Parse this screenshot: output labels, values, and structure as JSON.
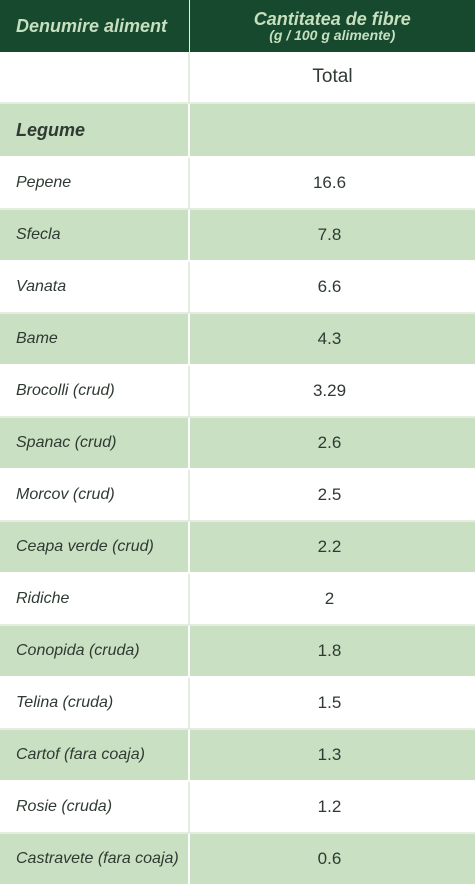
{
  "header": {
    "col1": "Denumire aliment",
    "col2_main": "Cantitatea de fibre",
    "col2_sub": "(g / 100 g alimente)"
  },
  "subheader": {
    "col1": "",
    "col2": "Total"
  },
  "section": {
    "label": "Legume",
    "value": ""
  },
  "rows": [
    {
      "name": "Pepene",
      "value": "16.6"
    },
    {
      "name": "Sfecla",
      "value": "7.8"
    },
    {
      "name": "Vanata",
      "value": "6.6"
    },
    {
      "name": "Bame",
      "value": "4.3"
    },
    {
      "name": "Brocolli (crud)",
      "value": "3.29"
    },
    {
      "name": "Spanac (crud)",
      "value": "2.6"
    },
    {
      "name": "Morcov (crud)",
      "value": "2.5"
    },
    {
      "name": "Ceapa verde (crud)",
      "value": "2.2"
    },
    {
      "name": "Ridiche",
      "value": "2"
    },
    {
      "name": "Conopida (cruda)",
      "value": "1.8"
    },
    {
      "name": "Telina (cruda)",
      "value": "1.5"
    },
    {
      "name": "Cartof (fara coaja)",
      "value": "1.3"
    },
    {
      "name": "Rosie (cruda)",
      "value": "1.2"
    },
    {
      "name": "Castravete (fara coaja)",
      "value": "0.6"
    }
  ],
  "colors": {
    "header_bg": "#17492f",
    "header_text": "#c6dfbf",
    "row_green": "#c9e0c2",
    "row_white": "#ffffff"
  }
}
